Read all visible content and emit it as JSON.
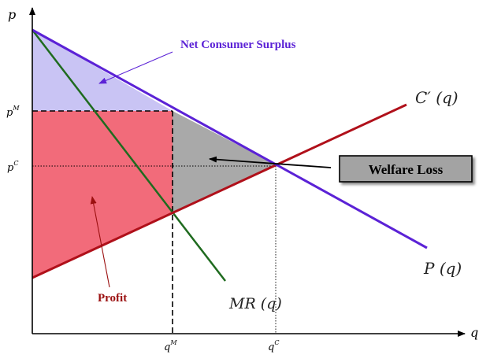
{
  "axes": {
    "y_label": "p",
    "x_label": "q"
  },
  "ticks": {
    "pM": "p",
    "pM_sup": "M",
    "pC": "p",
    "pC_sup": "C",
    "qM": "q",
    "qM_sup": "M",
    "qC": "q",
    "qC_sup": "C"
  },
  "curves": {
    "marginal_cost": "C′ (q)",
    "demand": "P (q)",
    "marginal_revenue": "MR (q)"
  },
  "annotations": {
    "consumer_surplus": "Net Consumer Surplus",
    "profit": "Profit",
    "welfare_loss": "Welfare Loss"
  },
  "colors": {
    "demand": "#5b22d6",
    "marginal_cost": "#b0101a",
    "marginal_revenue": "#1f6b1f",
    "consumer_surplus_fill": "#c9c4f4",
    "profit_fill": "#f26b7a",
    "welfare_loss_fill": "#a9a9a9",
    "annotation_cs": "#5b22d6",
    "annotation_profit": "#9b1010"
  }
}
